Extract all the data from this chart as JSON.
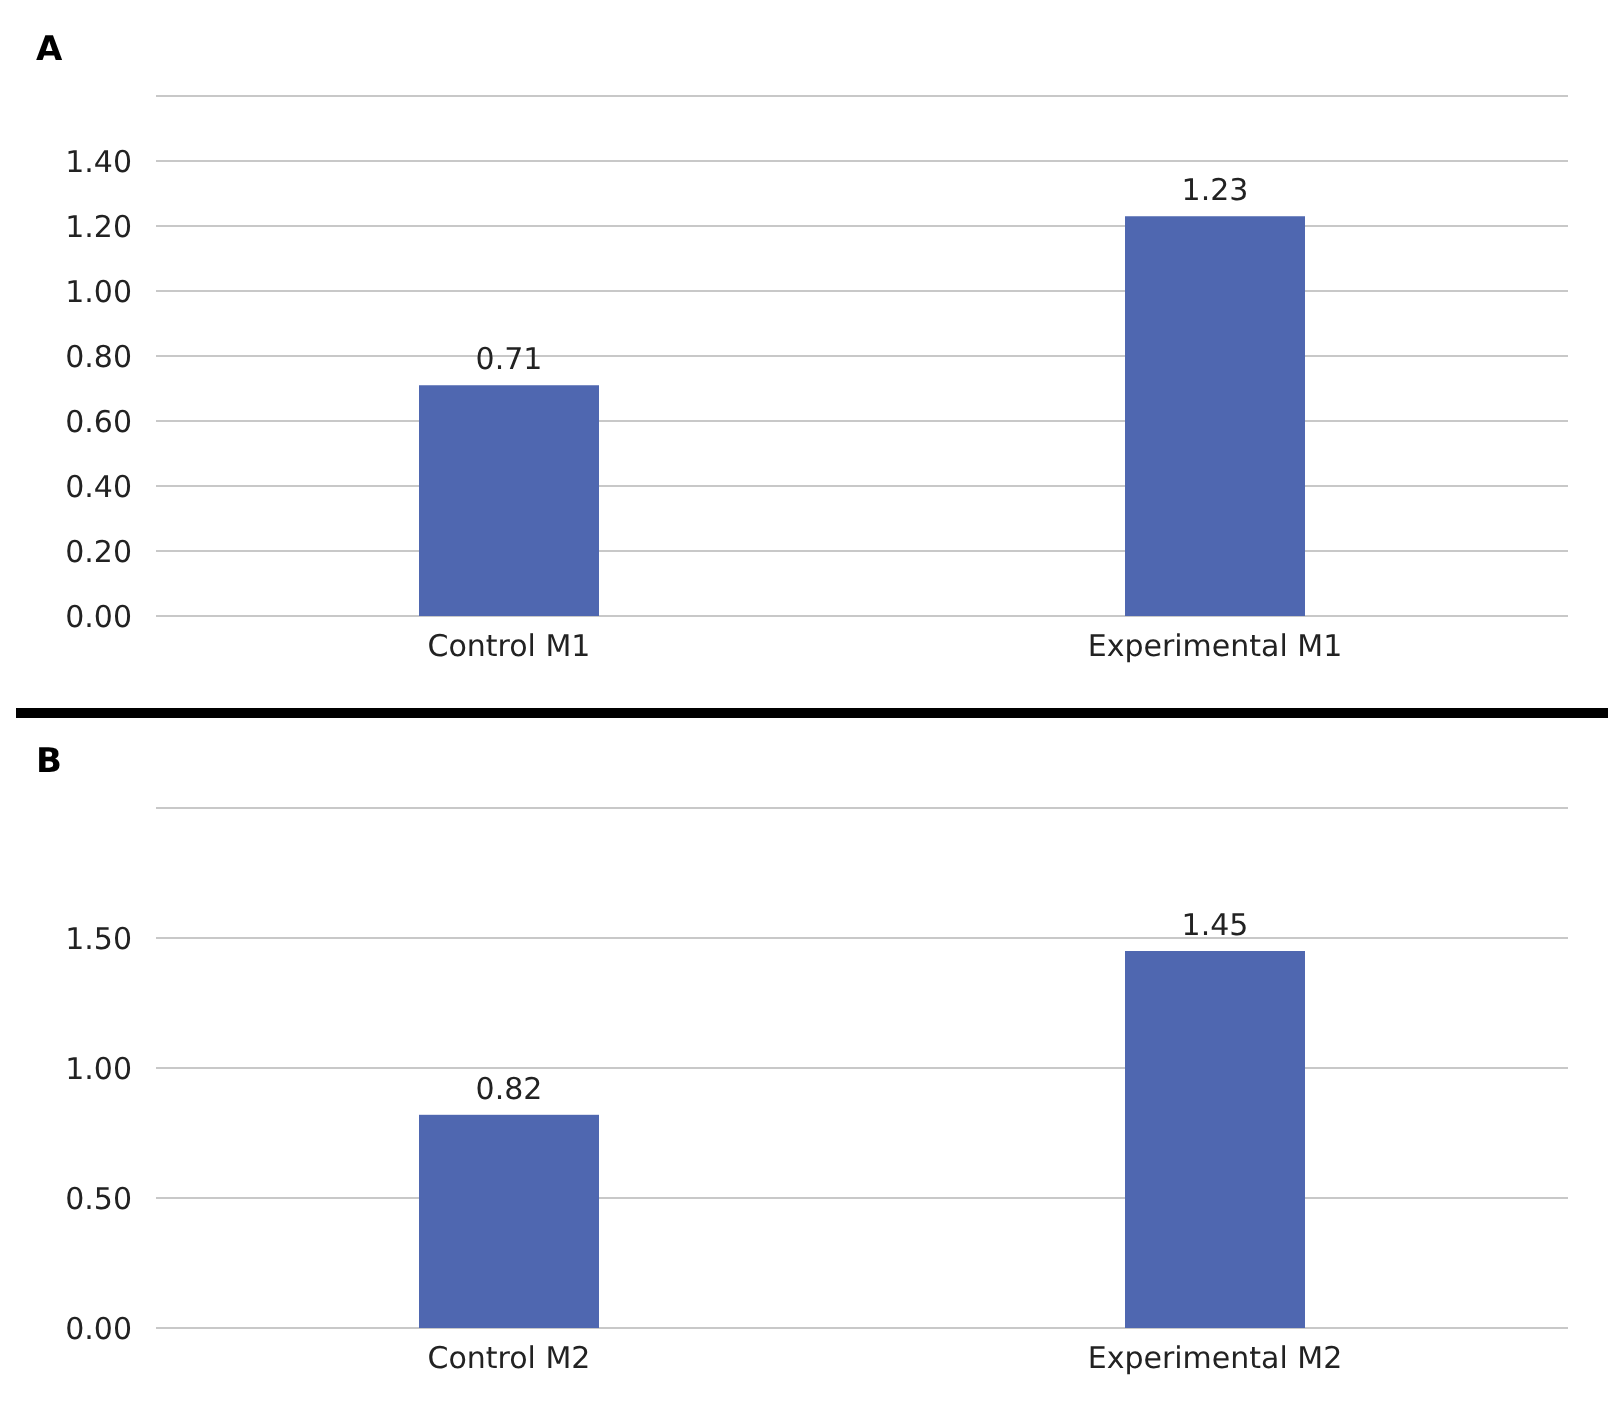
{
  "chart_data": [
    {
      "type": "bar",
      "title": "A",
      "categories": [
        "Control M1",
        "Experimental M1"
      ],
      "values": [
        0.71,
        1.23
      ],
      "color": "#4f67b0",
      "ylim": [
        0,
        1.6
      ],
      "yticks": [
        {
          "value": 0,
          "label": "0.00"
        },
        {
          "value": 0.2,
          "label": "0.20"
        },
        {
          "value": 0.4,
          "label": "0.40"
        },
        {
          "value": 0.6,
          "label": "0.60"
        },
        {
          "value": 0.8,
          "label": "0.80"
        },
        {
          "value": 1,
          "label": "1.00"
        },
        {
          "value": 1.2,
          "label": "1.20"
        },
        {
          "value": 1.4,
          "label": "1.40"
        },
        {
          "value": 1.6,
          "label": null
        }
      ],
      "grid": "y",
      "data_labels": true
    },
    {
      "type": "bar",
      "title": "B",
      "categories": [
        "Control M2",
        "Experimental M2"
      ],
      "values": [
        0.82,
        1.45
      ],
      "color": "#4f67b0",
      "ylim": [
        0,
        2
      ],
      "yticks": [
        {
          "value": 0,
          "label": "0.00"
        },
        {
          "value": 0.5,
          "label": "0.50"
        },
        {
          "value": 1,
          "label": "1.00"
        },
        {
          "value": 1.5,
          "label": "1.50"
        },
        {
          "value": 2,
          "label": null
        }
      ],
      "grid": "y",
      "data_labels": true
    }
  ]
}
